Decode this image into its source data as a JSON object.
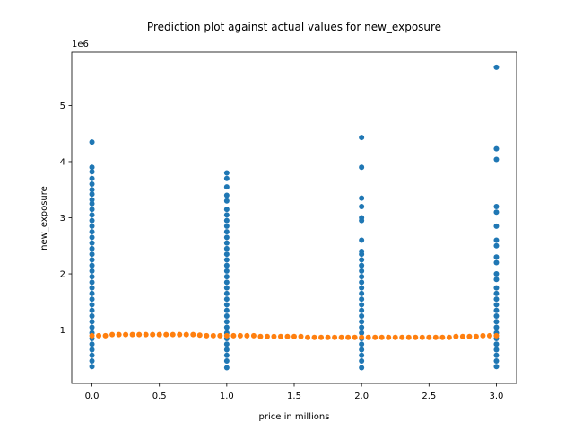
{
  "chart_data": {
    "type": "scatter",
    "title": "Prediction plot against actual values for new_exposure",
    "xlabel": "price in millions",
    "ylabel": "new_exposure",
    "y_offset_text": "1e6",
    "xlim": [
      -0.15,
      3.15
    ],
    "ylim": [
      50000,
      5950000
    ],
    "x_ticks": [
      0.0,
      0.5,
      1.0,
      1.5,
      2.0,
      2.5,
      3.0
    ],
    "x_tick_labels": [
      "0.0",
      "0.5",
      "1.0",
      "1.5",
      "2.0",
      "2.5",
      "3.0"
    ],
    "y_ticks": [
      1000000,
      2000000,
      3000000,
      4000000,
      5000000
    ],
    "y_tick_labels": [
      "1",
      "2",
      "3",
      "4",
      "5"
    ],
    "grid": false,
    "legend": "none",
    "series": [
      {
        "color": "#1f77b4",
        "points": [
          {
            "x": 0,
            "y": 4350000
          },
          {
            "x": 0,
            "y": 3900000
          },
          {
            "x": 0,
            "y": 3820000
          },
          {
            "x": 0,
            "y": 3700000
          },
          {
            "x": 0,
            "y": 3600000
          },
          {
            "x": 0,
            "y": 3500000
          },
          {
            "x": 0,
            "y": 3420000
          },
          {
            "x": 0,
            "y": 3320000
          },
          {
            "x": 0,
            "y": 3250000
          },
          {
            "x": 0,
            "y": 3150000
          },
          {
            "x": 0,
            "y": 3050000
          },
          {
            "x": 0,
            "y": 2950000
          },
          {
            "x": 0,
            "y": 2850000
          },
          {
            "x": 0,
            "y": 2750000
          },
          {
            "x": 0,
            "y": 2650000
          },
          {
            "x": 0,
            "y": 2550000
          },
          {
            "x": 0,
            "y": 2450000
          },
          {
            "x": 0,
            "y": 2350000
          },
          {
            "x": 0,
            "y": 2250000
          },
          {
            "x": 0,
            "y": 2150000
          },
          {
            "x": 0,
            "y": 2050000
          },
          {
            "x": 0,
            "y": 1950000
          },
          {
            "x": 0,
            "y": 1850000
          },
          {
            "x": 0,
            "y": 1750000
          },
          {
            "x": 0,
            "y": 1650000
          },
          {
            "x": 0,
            "y": 1550000
          },
          {
            "x": 0,
            "y": 1450000
          },
          {
            "x": 0,
            "y": 1350000
          },
          {
            "x": 0,
            "y": 1250000
          },
          {
            "x": 0,
            "y": 1150000
          },
          {
            "x": 0,
            "y": 1050000
          },
          {
            "x": 0,
            "y": 950000
          },
          {
            "x": 0,
            "y": 850000
          },
          {
            "x": 0,
            "y": 750000
          },
          {
            "x": 0,
            "y": 650000
          },
          {
            "x": 0,
            "y": 550000
          },
          {
            "x": 0,
            "y": 450000
          },
          {
            "x": 0,
            "y": 350000
          },
          {
            "x": 1,
            "y": 3800000
          },
          {
            "x": 1,
            "y": 3700000
          },
          {
            "x": 1,
            "y": 3550000
          },
          {
            "x": 1,
            "y": 3400000
          },
          {
            "x": 1,
            "y": 3300000
          },
          {
            "x": 1,
            "y": 3150000
          },
          {
            "x": 1,
            "y": 3050000
          },
          {
            "x": 1,
            "y": 2950000
          },
          {
            "x": 1,
            "y": 2850000
          },
          {
            "x": 1,
            "y": 2750000
          },
          {
            "x": 1,
            "y": 2650000
          },
          {
            "x": 1,
            "y": 2550000
          },
          {
            "x": 1,
            "y": 2450000
          },
          {
            "x": 1,
            "y": 2350000
          },
          {
            "x": 1,
            "y": 2250000
          },
          {
            "x": 1,
            "y": 2150000
          },
          {
            "x": 1,
            "y": 2050000
          },
          {
            "x": 1,
            "y": 1950000
          },
          {
            "x": 1,
            "y": 1850000
          },
          {
            "x": 1,
            "y": 1750000
          },
          {
            "x": 1,
            "y": 1650000
          },
          {
            "x": 1,
            "y": 1550000
          },
          {
            "x": 1,
            "y": 1450000
          },
          {
            "x": 1,
            "y": 1350000
          },
          {
            "x": 1,
            "y": 1250000
          },
          {
            "x": 1,
            "y": 1150000
          },
          {
            "x": 1,
            "y": 1050000
          },
          {
            "x": 1,
            "y": 950000
          },
          {
            "x": 1,
            "y": 850000
          },
          {
            "x": 1,
            "y": 750000
          },
          {
            "x": 1,
            "y": 650000
          },
          {
            "x": 1,
            "y": 550000
          },
          {
            "x": 1,
            "y": 450000
          },
          {
            "x": 1,
            "y": 330000
          },
          {
            "x": 2,
            "y": 4430000
          },
          {
            "x": 2,
            "y": 3900000
          },
          {
            "x": 2,
            "y": 3350000
          },
          {
            "x": 2,
            "y": 3200000
          },
          {
            "x": 2,
            "y": 3000000
          },
          {
            "x": 2,
            "y": 2950000
          },
          {
            "x": 2,
            "y": 2600000
          },
          {
            "x": 2,
            "y": 2400000
          },
          {
            "x": 2,
            "y": 2350000
          },
          {
            "x": 2,
            "y": 2250000
          },
          {
            "x": 2,
            "y": 2150000
          },
          {
            "x": 2,
            "y": 2050000
          },
          {
            "x": 2,
            "y": 1950000
          },
          {
            "x": 2,
            "y": 1850000
          },
          {
            "x": 2,
            "y": 1750000
          },
          {
            "x": 2,
            "y": 1650000
          },
          {
            "x": 2,
            "y": 1550000
          },
          {
            "x": 2,
            "y": 1450000
          },
          {
            "x": 2,
            "y": 1350000
          },
          {
            "x": 2,
            "y": 1250000
          },
          {
            "x": 2,
            "y": 1150000
          },
          {
            "x": 2,
            "y": 1050000
          },
          {
            "x": 2,
            "y": 950000
          },
          {
            "x": 2,
            "y": 850000
          },
          {
            "x": 2,
            "y": 750000
          },
          {
            "x": 2,
            "y": 650000
          },
          {
            "x": 2,
            "y": 550000
          },
          {
            "x": 2,
            "y": 450000
          },
          {
            "x": 2,
            "y": 330000
          },
          {
            "x": 3,
            "y": 5680000
          },
          {
            "x": 3,
            "y": 4230000
          },
          {
            "x": 3,
            "y": 4040000
          },
          {
            "x": 3,
            "y": 3200000
          },
          {
            "x": 3,
            "y": 3100000
          },
          {
            "x": 3,
            "y": 2850000
          },
          {
            "x": 3,
            "y": 2600000
          },
          {
            "x": 3,
            "y": 2500000
          },
          {
            "x": 3,
            "y": 2300000
          },
          {
            "x": 3,
            "y": 2200000
          },
          {
            "x": 3,
            "y": 2000000
          },
          {
            "x": 3,
            "y": 1900000
          },
          {
            "x": 3,
            "y": 1750000
          },
          {
            "x": 3,
            "y": 1650000
          },
          {
            "x": 3,
            "y": 1550000
          },
          {
            "x": 3,
            "y": 1450000
          },
          {
            "x": 3,
            "y": 1350000
          },
          {
            "x": 3,
            "y": 1250000
          },
          {
            "x": 3,
            "y": 1150000
          },
          {
            "x": 3,
            "y": 1050000
          },
          {
            "x": 3,
            "y": 950000
          },
          {
            "x": 3,
            "y": 850000
          },
          {
            "x": 3,
            "y": 750000
          },
          {
            "x": 3,
            "y": 650000
          },
          {
            "x": 3,
            "y": 550000
          },
          {
            "x": 3,
            "y": 450000
          },
          {
            "x": 3,
            "y": 350000
          }
        ]
      },
      {
        "color": "#ff7f0e",
        "points": [
          {
            "x": 0.0,
            "y": 900000
          },
          {
            "x": 0.05,
            "y": 900000
          },
          {
            "x": 0.1,
            "y": 900000
          },
          {
            "x": 0.15,
            "y": 920000
          },
          {
            "x": 0.2,
            "y": 920000
          },
          {
            "x": 0.25,
            "y": 920000
          },
          {
            "x": 0.3,
            "y": 920000
          },
          {
            "x": 0.35,
            "y": 920000
          },
          {
            "x": 0.4,
            "y": 920000
          },
          {
            "x": 0.45,
            "y": 920000
          },
          {
            "x": 0.5,
            "y": 920000
          },
          {
            "x": 0.55,
            "y": 920000
          },
          {
            "x": 0.6,
            "y": 920000
          },
          {
            "x": 0.65,
            "y": 920000
          },
          {
            "x": 0.7,
            "y": 920000
          },
          {
            "x": 0.75,
            "y": 920000
          },
          {
            "x": 0.8,
            "y": 910000
          },
          {
            "x": 0.85,
            "y": 900000
          },
          {
            "x": 0.9,
            "y": 900000
          },
          {
            "x": 0.95,
            "y": 900000
          },
          {
            "x": 1.0,
            "y": 900000
          },
          {
            "x": 1.05,
            "y": 900000
          },
          {
            "x": 1.1,
            "y": 900000
          },
          {
            "x": 1.15,
            "y": 900000
          },
          {
            "x": 1.2,
            "y": 900000
          },
          {
            "x": 1.25,
            "y": 885000
          },
          {
            "x": 1.3,
            "y": 885000
          },
          {
            "x": 1.35,
            "y": 885000
          },
          {
            "x": 1.4,
            "y": 885000
          },
          {
            "x": 1.45,
            "y": 885000
          },
          {
            "x": 1.5,
            "y": 885000
          },
          {
            "x": 1.55,
            "y": 885000
          },
          {
            "x": 1.6,
            "y": 870000
          },
          {
            "x": 1.65,
            "y": 870000
          },
          {
            "x": 1.7,
            "y": 870000
          },
          {
            "x": 1.75,
            "y": 870000
          },
          {
            "x": 1.8,
            "y": 870000
          },
          {
            "x": 1.85,
            "y": 870000
          },
          {
            "x": 1.9,
            "y": 870000
          },
          {
            "x": 1.95,
            "y": 870000
          },
          {
            "x": 2.0,
            "y": 870000
          },
          {
            "x": 2.05,
            "y": 870000
          },
          {
            "x": 2.1,
            "y": 870000
          },
          {
            "x": 2.15,
            "y": 870000
          },
          {
            "x": 2.2,
            "y": 870000
          },
          {
            "x": 2.25,
            "y": 870000
          },
          {
            "x": 2.3,
            "y": 870000
          },
          {
            "x": 2.35,
            "y": 870000
          },
          {
            "x": 2.4,
            "y": 870000
          },
          {
            "x": 2.45,
            "y": 870000
          },
          {
            "x": 2.5,
            "y": 870000
          },
          {
            "x": 2.55,
            "y": 870000
          },
          {
            "x": 2.6,
            "y": 870000
          },
          {
            "x": 2.65,
            "y": 870000
          },
          {
            "x": 2.7,
            "y": 885000
          },
          {
            "x": 2.75,
            "y": 885000
          },
          {
            "x": 2.8,
            "y": 885000
          },
          {
            "x": 2.85,
            "y": 885000
          },
          {
            "x": 2.9,
            "y": 900000
          },
          {
            "x": 2.95,
            "y": 900000
          },
          {
            "x": 3.0,
            "y": 900000
          }
        ]
      }
    ]
  }
}
